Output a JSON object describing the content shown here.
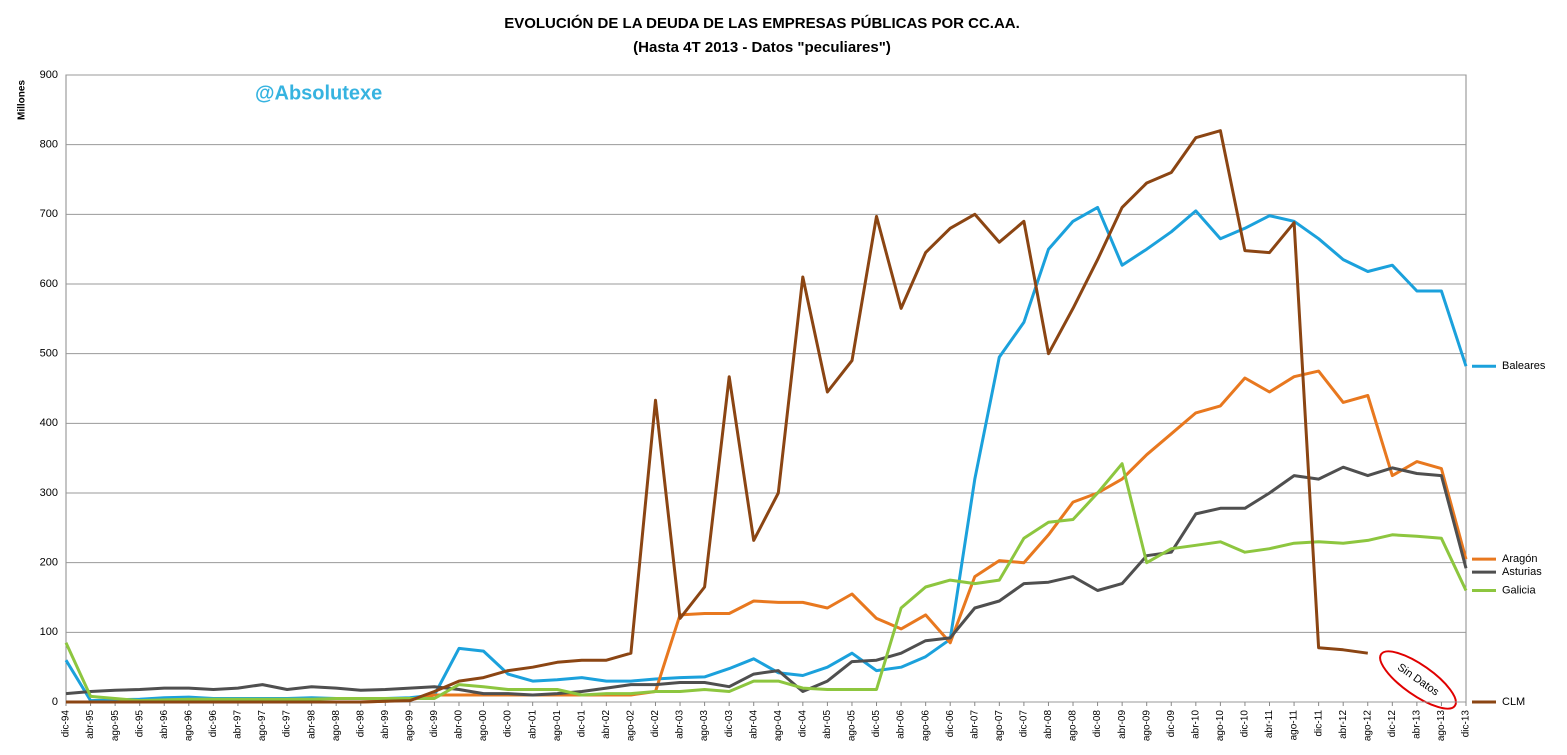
{
  "chart_data": {
    "type": "line",
    "title": "EVOLUCIÓN DE LA DEUDA DE LAS EMPRESAS PÚBLICAS POR CC.AA.",
    "subtitle": "(Hasta 4T 2013 - Datos \"peculiares\")",
    "y_label": "Millones",
    "watermark": "@Absolutexe",
    "annotation": "Sin Datos",
    "categories": [
      "dic-94",
      "abr-95",
      "ago-95",
      "dic-95",
      "abr-96",
      "ago-96",
      "dic-96",
      "abr-97",
      "ago-97",
      "dic-97",
      "abr-98",
      "ago-98",
      "dic-98",
      "abr-99",
      "ago-99",
      "dic-99",
      "abr-00",
      "ago-00",
      "dic-00",
      "abr-01",
      "ago-01",
      "dic-01",
      "abr-02",
      "ago-02",
      "dic-02",
      "abr-03",
      "ago-03",
      "dic-03",
      "abr-04",
      "ago-04",
      "dic-04",
      "abr-05",
      "ago-05",
      "dic-05",
      "abr-06",
      "ago-06",
      "dic-06",
      "abr-07",
      "ago-07",
      "dic-07",
      "abr-08",
      "ago-08",
      "dic-08",
      "abr-09",
      "ago-09",
      "dic-09",
      "abr-10",
      "ago-10",
      "dic-10",
      "abr-11",
      "ago-11",
      "dic-11",
      "abr-12",
      "ago-12",
      "dic-12",
      "abr-13",
      "ago-13",
      "dic-13"
    ],
    "series": [
      {
        "name": "Baleares",
        "color": "#1ba1dc",
        "values": [
          60,
          2,
          3,
          4,
          6,
          7,
          5,
          5,
          5,
          5,
          6,
          5,
          5,
          5,
          6,
          10,
          77,
          73,
          40,
          30,
          32,
          35,
          30,
          30,
          33,
          35,
          36,
          48,
          62,
          42,
          38,
          50,
          70,
          45,
          50,
          65,
          90,
          320,
          495,
          545,
          650,
          690,
          710,
          627,
          650,
          675,
          705,
          665,
          680,
          698,
          690,
          665,
          635,
          618,
          627,
          590,
          590,
          482
        ]
      },
      {
        "name": "Aragón",
        "color": "#e8781f",
        "values": [
          0,
          0,
          0,
          0,
          0,
          0,
          0,
          0,
          0,
          0,
          0,
          0,
          0,
          1,
          3,
          10,
          10,
          10,
          10,
          10,
          10,
          10,
          10,
          10,
          15,
          125,
          127,
          127,
          145,
          143,
          143,
          135,
          155,
          120,
          105,
          125,
          85,
          180,
          203,
          200,
          240,
          287,
          300,
          320,
          355,
          385,
          415,
          425,
          465,
          445,
          467,
          475,
          430,
          440,
          325,
          345,
          335,
          205
        ]
      },
      {
        "name": "Asturias",
        "color": "#4f4f4f",
        "values": [
          12,
          15,
          17,
          18,
          20,
          20,
          18,
          20,
          25,
          18,
          22,
          20,
          17,
          18,
          20,
          22,
          18,
          12,
          12,
          10,
          12,
          15,
          20,
          25,
          25,
          28,
          28,
          22,
          40,
          45,
          15,
          30,
          58,
          60,
          70,
          88,
          92,
          135,
          145,
          170,
          172,
          180,
          160,
          170,
          210,
          215,
          270,
          278,
          278,
          300,
          325,
          320,
          337,
          325,
          336,
          328,
          325,
          192
        ]
      },
      {
        "name": "Galicia",
        "color": "#8dc63f",
        "values": [
          85,
          8,
          5,
          2,
          3,
          4,
          4,
          4,
          4,
          4,
          4,
          5,
          5,
          5,
          5,
          5,
          25,
          22,
          18,
          18,
          18,
          10,
          12,
          12,
          15,
          15,
          18,
          15,
          30,
          30,
          20,
          18,
          18,
          18,
          135,
          165,
          175,
          170,
          175,
          235,
          258,
          262,
          300,
          342,
          200,
          220,
          225,
          230,
          215,
          220,
          228,
          230,
          228,
          232,
          240,
          238,
          235,
          160
        ]
      },
      {
        "name": "CLM",
        "color": "#8b4513",
        "values": [
          0,
          0,
          0,
          0,
          0,
          0,
          0,
          0,
          0,
          0,
          0,
          0,
          0,
          1,
          2,
          15,
          30,
          35,
          45,
          50,
          57,
          60,
          60,
          70,
          433,
          120,
          165,
          467,
          232,
          300,
          610,
          445,
          490,
          697,
          565,
          645,
          680,
          700,
          660,
          690,
          500,
          565,
          635,
          710,
          745,
          760,
          810,
          820,
          648,
          645,
          688,
          78,
          75,
          70,
          null,
          null,
          null,
          0
        ]
      }
    ],
    "ylim": [
      0,
      900
    ],
    "yticks": [
      0,
      100,
      200,
      300,
      400,
      500,
      600,
      700,
      800,
      900
    ],
    "grid": true
  }
}
